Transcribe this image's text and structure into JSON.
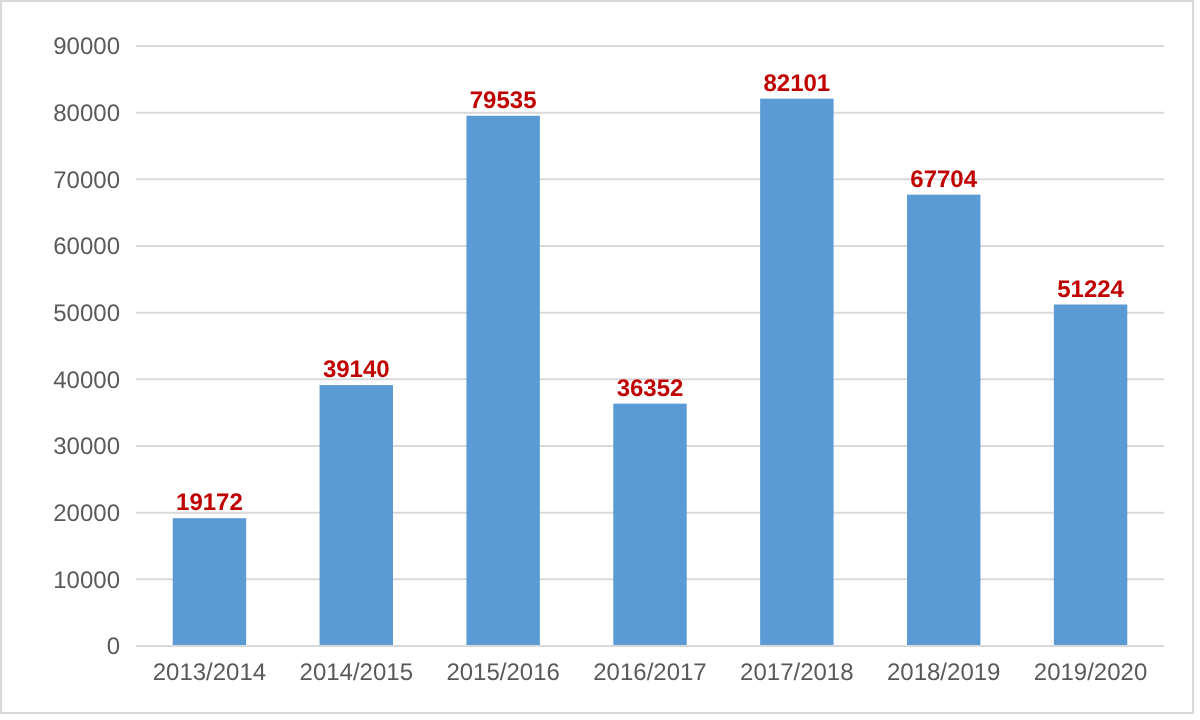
{
  "chart_data": {
    "type": "bar",
    "categories": [
      "2013/2014",
      "2014/2015",
      "2015/2016",
      "2016/2017",
      "2017/2018",
      "2018/2019",
      "2019/2020"
    ],
    "values": [
      19172,
      39140,
      79535,
      36352,
      82101,
      67704,
      51224
    ],
    "color": "#5b9bd5",
    "ylim": [
      0,
      90000
    ],
    "yticks": [
      0,
      10000,
      20000,
      30000,
      40000,
      50000,
      60000,
      70000,
      80000,
      90000
    ],
    "grid": "y",
    "data_labels": true
  }
}
